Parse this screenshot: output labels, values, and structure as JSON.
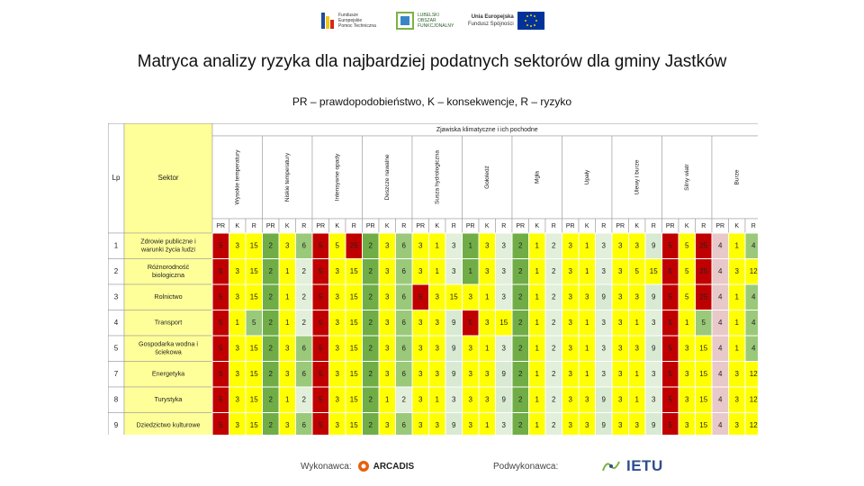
{
  "header": {
    "logos": [
      {
        "name": "fundusze-europejskie-logo",
        "line1": "Fundusze",
        "line2": "Europejskie",
        "line3": "Pomoc Techniczna"
      },
      {
        "name": "lubelski-obszar-funkcjonalny-logo",
        "line1": "LUBELSKI",
        "line2": "OBSZAR",
        "line3": "FUNKCJONALNY"
      },
      {
        "name": "unia-europejska-logo",
        "line1": "Unia Europejska",
        "line2": "Fundusz Spójności",
        "line3": ""
      }
    ],
    "title": "Matryca analizy ryzyka dla najbardziej podatnych sektorów dla gminy Jastków",
    "subtitle": "PR – prawdopodobieństwo, K – konsekwencje, R – ryzyko"
  },
  "table": {
    "group_header": "Zjawiska klimatyczne i ich pochodne",
    "col_lp": "Lp",
    "col_sector": "Sektor",
    "phenomena": [
      "Wysokie temperatury",
      "Niskie temperatury",
      "Intensywne opady",
      "Deszcze nawalne",
      "Susza hydrologiczna",
      "Gołoledź",
      "Mgła",
      "Upały",
      "Ulewy i burze",
      "Silny wiatr",
      "Burze"
    ],
    "sub_headers": [
      "PR",
      "K",
      "R"
    ],
    "rows": [
      {
        "lp": "1",
        "sector": "Zdrowie publiczne i warunki życia ludzi",
        "values": [
          [
            5,
            3,
            15
          ],
          [
            2,
            3,
            6
          ],
          [
            5,
            5,
            25
          ],
          [
            2,
            3,
            6
          ],
          [
            3,
            1,
            3
          ],
          [
            1,
            3,
            3
          ],
          [
            2,
            1,
            2
          ],
          [
            3,
            1,
            3
          ],
          [
            3,
            3,
            9
          ],
          [
            5,
            5,
            25
          ],
          [
            4,
            1,
            4
          ]
        ]
      },
      {
        "lp": "2",
        "sector": "Różnorodność biologiczna",
        "values": [
          [
            5,
            3,
            15
          ],
          [
            2,
            1,
            2
          ],
          [
            5,
            3,
            15
          ],
          [
            2,
            3,
            6
          ],
          [
            3,
            1,
            3
          ],
          [
            1,
            3,
            3
          ],
          [
            2,
            1,
            2
          ],
          [
            3,
            1,
            3
          ],
          [
            3,
            5,
            15
          ],
          [
            5,
            5,
            25
          ],
          [
            4,
            3,
            12
          ]
        ]
      },
      {
        "lp": "3",
        "sector": "Rolnictwo",
        "values": [
          [
            5,
            3,
            15
          ],
          [
            2,
            1,
            2
          ],
          [
            5,
            3,
            15
          ],
          [
            2,
            3,
            6
          ],
          [
            5,
            3,
            15
          ],
          [
            3,
            1,
            3
          ],
          [
            2,
            1,
            2
          ],
          [
            3,
            3,
            9
          ],
          [
            3,
            3,
            9
          ],
          [
            5,
            5,
            25
          ],
          [
            4,
            1,
            4
          ]
        ]
      },
      {
        "lp": "4",
        "sector": "Transport",
        "values": [
          [
            5,
            1,
            5
          ],
          [
            2,
            1,
            2
          ],
          [
            5,
            3,
            15
          ],
          [
            2,
            3,
            6
          ],
          [
            3,
            3,
            9
          ],
          [
            5,
            3,
            15
          ],
          [
            2,
            1,
            2
          ],
          [
            3,
            1,
            3
          ],
          [
            3,
            1,
            3
          ],
          [
            5,
            1,
            5
          ],
          [
            4,
            1,
            4
          ]
        ]
      },
      {
        "lp": "5",
        "sector": "Gospodarka wodna i ściekowa",
        "values": [
          [
            5,
            3,
            15
          ],
          [
            2,
            3,
            6
          ],
          [
            5,
            3,
            15
          ],
          [
            2,
            3,
            6
          ],
          [
            3,
            3,
            9
          ],
          [
            3,
            1,
            3
          ],
          [
            2,
            1,
            2
          ],
          [
            3,
            1,
            3
          ],
          [
            3,
            3,
            9
          ],
          [
            5,
            3,
            15
          ],
          [
            4,
            1,
            4
          ]
        ]
      },
      {
        "lp": "7",
        "sector": "Energetyka",
        "values": [
          [
            5,
            3,
            15
          ],
          [
            2,
            3,
            6
          ],
          [
            5,
            3,
            15
          ],
          [
            2,
            3,
            6
          ],
          [
            3,
            3,
            9
          ],
          [
            3,
            3,
            9
          ],
          [
            2,
            1,
            2
          ],
          [
            3,
            1,
            3
          ],
          [
            3,
            1,
            3
          ],
          [
            5,
            3,
            15
          ],
          [
            4,
            3,
            12
          ]
        ]
      },
      {
        "lp": "8",
        "sector": "Turystyka",
        "values": [
          [
            5,
            3,
            15
          ],
          [
            2,
            1,
            2
          ],
          [
            5,
            3,
            15
          ],
          [
            2,
            1,
            2
          ],
          [
            3,
            1,
            3
          ],
          [
            3,
            3,
            9
          ],
          [
            2,
            1,
            2
          ],
          [
            3,
            3,
            9
          ],
          [
            3,
            1,
            3
          ],
          [
            5,
            3,
            15
          ],
          [
            4,
            3,
            12
          ]
        ]
      },
      {
        "lp": "9",
        "sector": "Dziedzictwo kulturowe",
        "values": [
          [
            5,
            3,
            15
          ],
          [
            2,
            3,
            6
          ],
          [
            5,
            3,
            15
          ],
          [
            2,
            3,
            6
          ],
          [
            3,
            3,
            9
          ],
          [
            3,
            1,
            3
          ],
          [
            2,
            1,
            2
          ],
          [
            3,
            3,
            9
          ],
          [
            3,
            3,
            9
          ],
          [
            5,
            3,
            15
          ],
          [
            4,
            3,
            12
          ]
        ]
      }
    ]
  },
  "footer": {
    "contractor_label": "Wykonawca:",
    "contractor_name": "ARCADIS",
    "subcontractor_label": "Podwykonawca:",
    "subcontractor_name": "IETU"
  },
  "colors": {
    "pr5": "#c00000",
    "pr4": "#e8c8c8",
    "pr3": "#ffff00",
    "pr2": "#70ad47",
    "risk_extreme": "#c00000",
    "risk_high": "#ffff00",
    "risk_medium": "#d9ead3",
    "risk_low": "#9bc97a",
    "risk_negligible": "#e2efda",
    "k_cell": "#ffff00",
    "lp_bg": "#ffffff",
    "sector_bg": "#ffff99",
    "phen_bg": "#ffffff",
    "header_border": "#9f9f9f"
  }
}
